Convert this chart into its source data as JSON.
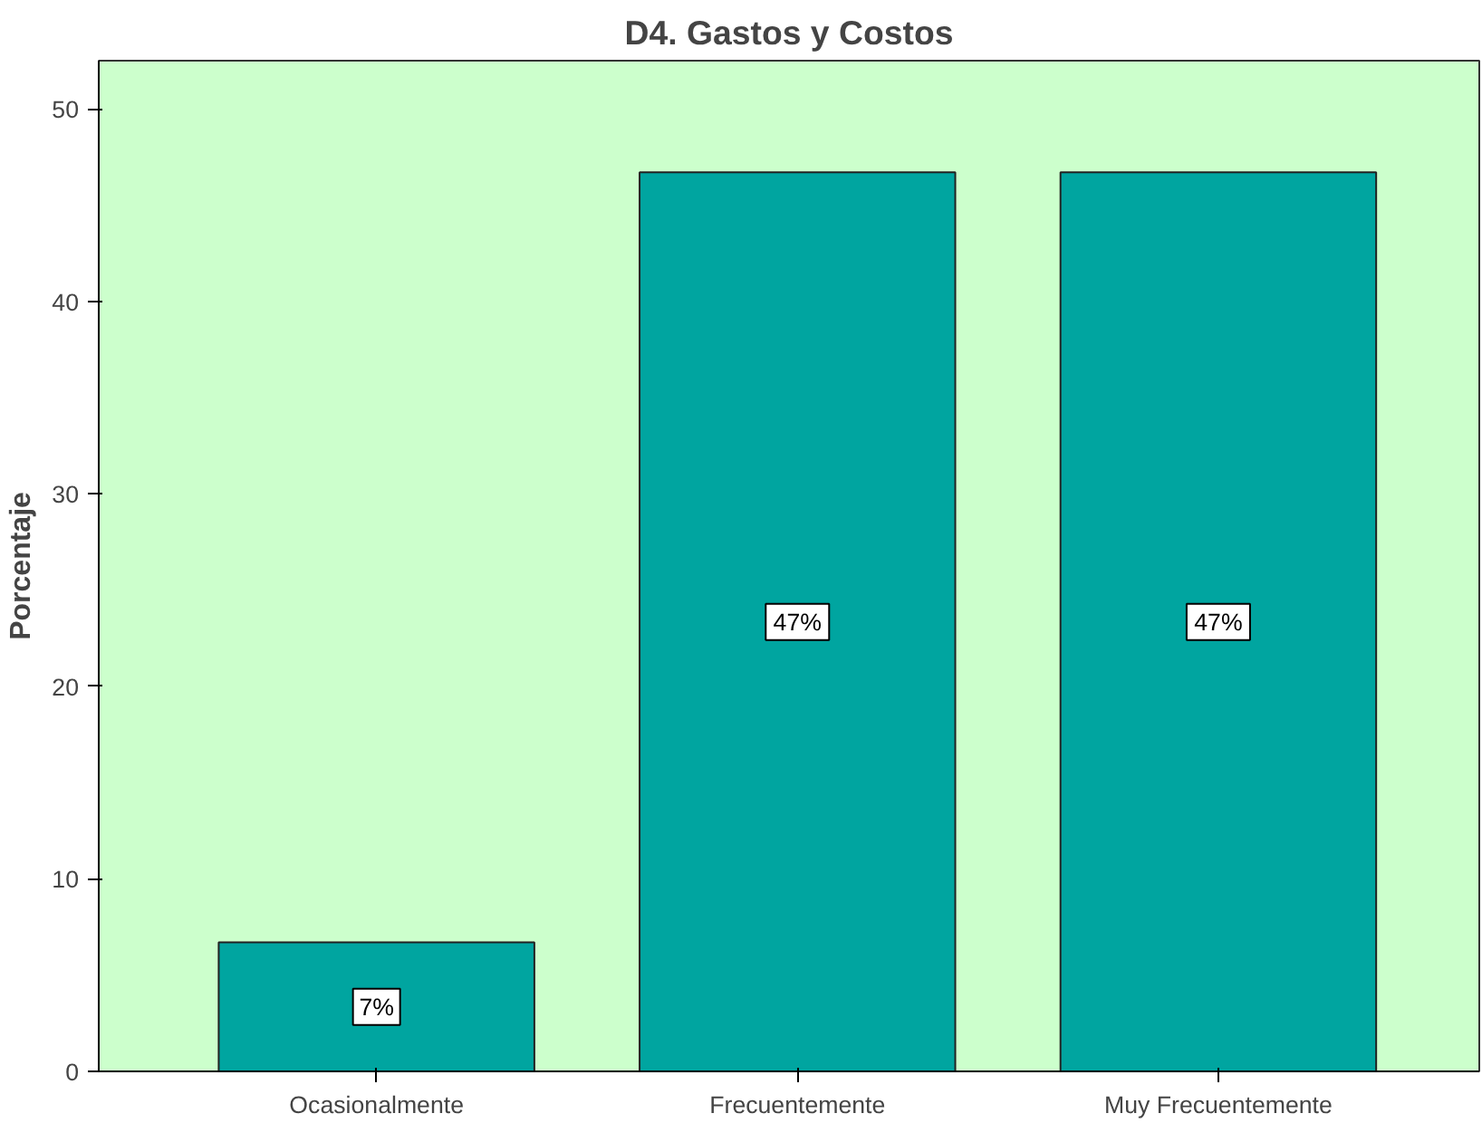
{
  "chart_data": {
    "type": "bar",
    "title": "D4. Gastos y Costos",
    "ylabel": "Porcentaje",
    "categories": [
      "Ocasionalmente",
      "Frecuentemente",
      "Muy Frecuentemente"
    ],
    "values": [
      6.7,
      46.7,
      46.7
    ],
    "value_labels": [
      "7%",
      "47%",
      "47%"
    ],
    "color": "#00a5a0",
    "ylim": [
      0,
      52.5
    ],
    "yticks": [
      0,
      10,
      20,
      30,
      40,
      50
    ],
    "grid": false
  }
}
